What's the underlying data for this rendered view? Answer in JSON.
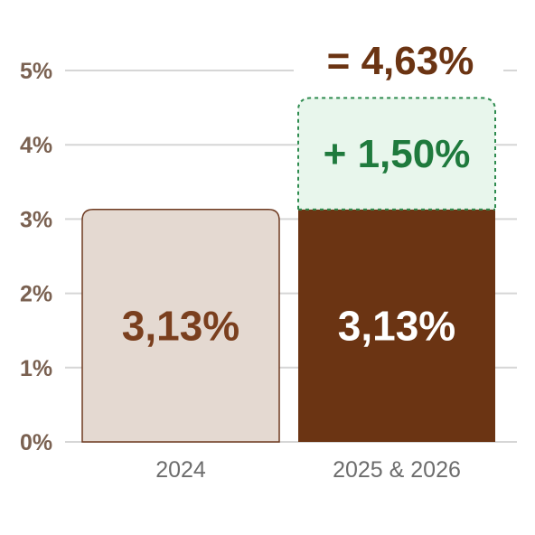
{
  "chart_data": {
    "type": "bar",
    "categories": [
      "2024",
      "2025 & 2026"
    ],
    "series": [
      {
        "values": [
          3.13,
          3.13
        ]
      },
      {
        "values": [
          0,
          1.5
        ]
      }
    ],
    "ylim": [
      0,
      5
    ],
    "yticks": [
      0,
      1,
      2,
      3,
      4,
      5
    ],
    "ytick_labels": [
      "0%",
      "1%",
      "2%",
      "3%",
      "4%",
      "5%"
    ],
    "bar_labels": [
      "3,13%",
      "3,13%"
    ],
    "increment_label": "+ 1,50%",
    "total_label": "= 4,63%",
    "grid": true,
    "colors": {
      "bar_2024_fill": "#e4d9d1",
      "bar_2024_stroke": "#6e3a21",
      "bar_main": "#6b3413",
      "increment_fill": "#e8f6ec",
      "increment_stroke": "#2e8b4f",
      "increment_text": "#1f7a3d",
      "total_text": "#6b3413",
      "label_2024_text": "#7a3f1e",
      "label_main_text": "#ffffff",
      "tick_text": "#7a6151",
      "category_text": "#6d6d6d",
      "grid": "#d6d6d6"
    }
  }
}
